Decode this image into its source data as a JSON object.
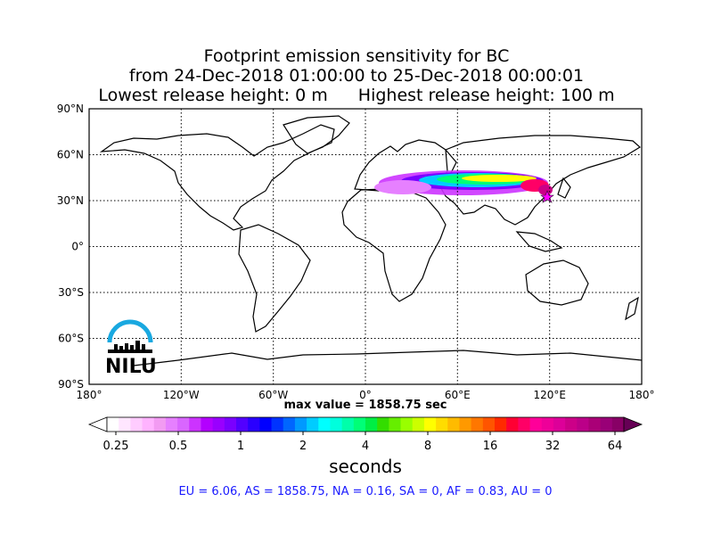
{
  "title": {
    "line1": "Footprint emission sensitivity for BC",
    "line2": "from 24-Dec-2018 01:00:00 to 25-Dec-2018 00:00:01",
    "line3_left": "Lowest release height: 0 m",
    "line3_right": "Highest release height: 100 m"
  },
  "map": {
    "lat_labels": [
      "90°N",
      "60°N",
      "30°N",
      "0°",
      "30°S",
      "60°S",
      "90°S"
    ],
    "lon_labels": [
      "180°",
      "120°W",
      "60°W",
      "0°",
      "60°E",
      "120°E",
      "180°"
    ],
    "max_value_text": "max value = 1858.75 sec",
    "logo_text": "NILU"
  },
  "colorbar": {
    "ticks": [
      "0.25",
      "0.5",
      "1",
      "2",
      "4",
      "8",
      "16",
      "32",
      "64"
    ],
    "units": "seconds",
    "colors": [
      "#ffffff",
      "#ffe6ff",
      "#ffccff",
      "#ffb3ff",
      "#f29bf2",
      "#e680ff",
      "#d966ff",
      "#cc33ff",
      "#b300ff",
      "#9900ff",
      "#7a00ff",
      "#5200ff",
      "#2a00ff",
      "#0000ff",
      "#0033ff",
      "#0066ff",
      "#0099ff",
      "#00ccff",
      "#00ffff",
      "#00ffdd",
      "#00ffaa",
      "#00ff77",
      "#00ee44",
      "#33dd00",
      "#66ee00",
      "#99ff00",
      "#ccff00",
      "#ffff00",
      "#ffdd00",
      "#ffbb00",
      "#ff9900",
      "#ff7700",
      "#ff5500",
      "#ff2a00",
      "#ff0033",
      "#ff0066",
      "#ff0099",
      "#ee0099",
      "#dd0099",
      "#cc0088",
      "#bb0088",
      "#aa0077",
      "#990077",
      "#880066"
    ],
    "end_left": "#ffffff",
    "end_right": "#660055"
  },
  "regions_text": "EU = 6.06,  AS = 1858.75,  NA = 0.16,  SA = 0,  AF = 0.83,  AU = 0"
}
